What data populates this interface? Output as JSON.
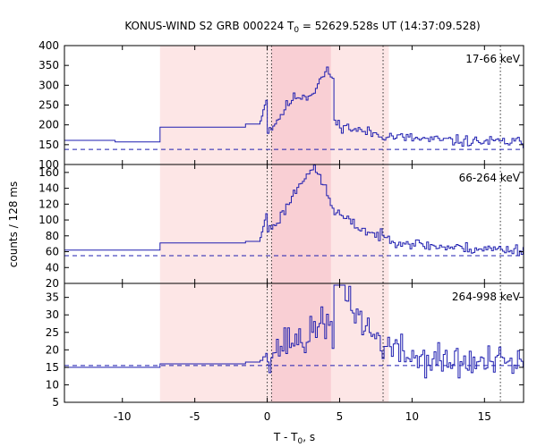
{
  "chart_data": {
    "type": "line",
    "title": {
      "prefix": "KONUS-WIND S2 GRB 000224 T",
      "sub": "0",
      "suffix": " = 52629.528s UT (14:37:09.528)"
    },
    "ylabel": "counts / 128 ms",
    "xlabel": {
      "prefix": "T - T",
      "sub": "0",
      "suffix": ", s"
    },
    "xlim": [
      -14,
      17.7
    ],
    "xticks": [
      -10,
      -5,
      0,
      5,
      10,
      15
    ],
    "xtick_labels": [
      "-10",
      "-5",
      "0",
      "5",
      "10",
      "15"
    ],
    "shaded_regions": [
      {
        "x0": -7.4,
        "x1": 8.4,
        "color": "#fde6e6"
      },
      {
        "x0": 0.3,
        "x1": 4.4,
        "color": "#f9cfd4"
      }
    ],
    "vertical_markers": [
      0.0,
      0.3,
      8.0,
      16.1
    ],
    "step_color": "#1f1fb0",
    "background_color": "#1f1fb0",
    "panels": [
      {
        "label": "17-66 keV",
        "ylim": [
          100,
          400
        ],
        "yticks": [
          100,
          150,
          200,
          250,
          300,
          350,
          400
        ],
        "background_level": 138,
        "pre_trigger": [
          {
            "x0": -14,
            "x1": -10.5,
            "y": 161
          },
          {
            "x0": -10.5,
            "x1": -7.4,
            "y": 157
          },
          {
            "x0": -7.4,
            "x1": -1.5,
            "y": 194
          },
          {
            "x0": -1.5,
            "x1": -0.5,
            "y": 202
          }
        ],
        "rise": [
          210,
          222,
          238,
          250,
          262
        ],
        "peak_centers": [
          2.0,
          4.2
        ],
        "peak_amps": [
          93,
          148
        ],
        "peak_widths": [
          1.0,
          0.8
        ],
        "base": 175,
        "tail_level": 155,
        "tail_decay": 3.5,
        "noise": 14,
        "seed": 11
      },
      {
        "label": "66-264 keV",
        "ylim": [
          20,
          170
        ],
        "yticks": [
          20,
          40,
          60,
          80,
          100,
          120,
          140,
          160
        ],
        "background_level": 55,
        "pre_trigger": [
          {
            "x0": -14,
            "x1": -7.4,
            "y": 62
          },
          {
            "x0": -7.4,
            "x1": -1.5,
            "y": 71
          },
          {
            "x0": -1.5,
            "x1": -0.5,
            "y": 73
          }
        ],
        "rise": [
          78,
          85,
          92,
          100,
          108
        ],
        "peak_centers": [
          2.0,
          3.4
        ],
        "peak_amps": [
          40,
          62
        ],
        "peak_widths": [
          1.0,
          0.9
        ],
        "base": 82,
        "tail_level": 62,
        "tail_decay": 3.0,
        "noise": 7,
        "seed": 23
      },
      {
        "label": "264-998 keV",
        "ylim": [
          5,
          39
        ],
        "yticks": [
          5,
          10,
          15,
          20,
          25,
          30,
          35
        ],
        "background_level": 15.5,
        "pre_trigger": [
          {
            "x0": -14,
            "x1": -7.4,
            "y": 15
          },
          {
            "x0": -7.4,
            "x1": -1.5,
            "y": 16
          },
          {
            "x0": -1.5,
            "x1": -0.5,
            "y": 16.5
          }
        ],
        "rise": [
          17,
          17,
          18,
          18,
          19
        ],
        "peak_centers": [
          2.0,
          3.8
        ],
        "peak_amps": [
          6,
          10
        ],
        "peak_widths": [
          1.3,
          0.5
        ],
        "base": 17,
        "tail_level": 16,
        "tail_decay": 2.0,
        "noise": 5,
        "seed": 37
      }
    ]
  }
}
